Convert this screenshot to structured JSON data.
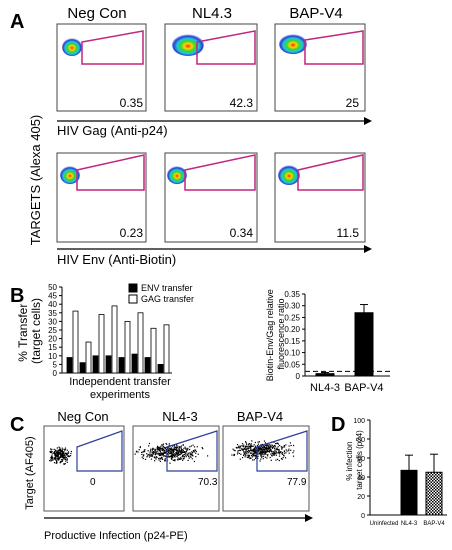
{
  "panels": {
    "A": {
      "letter": "A",
      "column_titles": [
        "Neg Con",
        "NL4.3",
        "BAP-V4"
      ],
      "y_label": "TARGETS (Alexa 405)",
      "row1": {
        "x_label": "HIV Gag (Anti-p24)",
        "gate_values": [
          "0.35",
          "42.3",
          "25"
        ]
      },
      "row2": {
        "x_label": "HIV Env (Anti-Biotin)",
        "gate_values": [
          "0.23",
          "0.34",
          "11.5"
        ]
      }
    },
    "B": {
      "letter": "B"
    },
    "C": {
      "letter": "C",
      "column_titles": [
        "Neg Con",
        "NL4-3",
        "BAP-V4"
      ],
      "gate_values": [
        "0",
        "70.3",
        "77.9"
      ],
      "y_label": "Target (AF405)",
      "x_label": "Productive Infection (p24-PE)"
    },
    "D": {
      "letter": "D"
    }
  },
  "chart_data": [
    {
      "id": "B-left",
      "type": "bar",
      "ylabel": "% Transfer (target cells)",
      "ylabel_lines": [
        "% Transfer",
        "(target cells)"
      ],
      "xlabel": "Independent transfer experiments",
      "xlabel_lines": [
        "Independent transfer",
        "experiments"
      ],
      "ylim": [
        0,
        50
      ],
      "yticks": [
        0,
        5,
        10,
        15,
        20,
        25,
        30,
        35,
        40,
        45,
        50
      ],
      "legend_position": "top-right",
      "series": [
        {
          "name": "ENV transfer",
          "color": "#000000",
          "values": [
            9,
            6,
            10,
            10,
            9,
            11,
            9,
            5
          ]
        },
        {
          "name": "GAG transfer",
          "color": "#ffffff",
          "values": [
            36,
            18,
            34,
            39,
            30,
            35,
            26,
            28
          ]
        }
      ]
    },
    {
      "id": "B-right",
      "type": "bar",
      "ylabel": "Biotin-Env/Gag relative fluorescence ratio",
      "ylabel_lines": [
        "Biotin-Env/Gag relative",
        "fluorescence ratio"
      ],
      "categories": [
        "NL4-3",
        "BAP-V4"
      ],
      "values": [
        0.01,
        0.27
      ],
      "errors": [
        0.005,
        0.035
      ],
      "reference_line": 0.02,
      "ylim": [
        0,
        0.35
      ],
      "yticks": [
        "0",
        "0.05",
        "0.10",
        "0.15",
        "0.20",
        "0.25",
        "0.30",
        "0.35"
      ],
      "bar_color": "#000000"
    },
    {
      "id": "D",
      "type": "bar",
      "ylabel": "% infection target cells (p24)",
      "ylabel_lines": [
        "% infection",
        "target cells (p24)"
      ],
      "categories": [
        "Uninfected",
        "NL4-3",
        "BAP-V4"
      ],
      "values": [
        0,
        47,
        45
      ],
      "errors": [
        0,
        16,
        19
      ],
      "ylim": [
        0,
        100
      ],
      "yticks": [
        0,
        20,
        40,
        60,
        80,
        100
      ],
      "fills": [
        "#ffffff",
        "#000000",
        "pattern"
      ]
    }
  ]
}
